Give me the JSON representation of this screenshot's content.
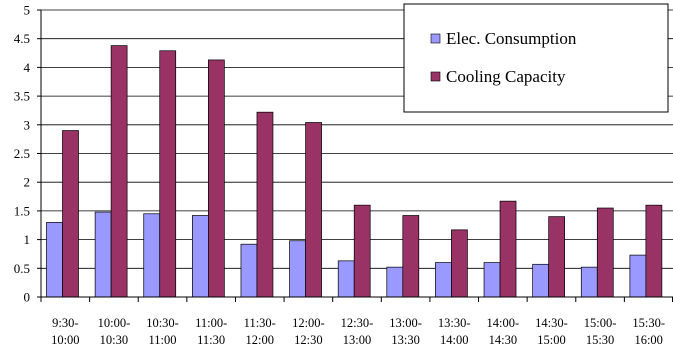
{
  "chart_data": {
    "type": "bar",
    "categories": [
      [
        "9:30-",
        "10:00"
      ],
      [
        "10:00-",
        "10:30"
      ],
      [
        "10:30-",
        "11:00"
      ],
      [
        "11:00-",
        "11:30"
      ],
      [
        "11:30-",
        "12:00"
      ],
      [
        "12:00-",
        "12:30"
      ],
      [
        "12:30-",
        "13:00"
      ],
      [
        "13:00-",
        "13:30"
      ],
      [
        "13:30-",
        "14:00"
      ],
      [
        "14:00-",
        "14:30"
      ],
      [
        "14:30-",
        "15:00"
      ],
      [
        "15:00-",
        "15:30"
      ],
      [
        "15:30-",
        "16:00"
      ]
    ],
    "series": [
      {
        "name": "Elec. Consumption",
        "color": "#9999ff",
        "values": [
          1.3,
          1.48,
          1.45,
          1.42,
          0.92,
          0.98,
          0.63,
          0.52,
          0.6,
          0.6,
          0.57,
          0.52,
          0.73
        ]
      },
      {
        "name": "Cooling Capacity",
        "color": "#993366",
        "values": [
          2.9,
          4.38,
          4.29,
          4.13,
          3.22,
          3.04,
          1.6,
          1.42,
          1.17,
          1.67,
          1.4,
          1.55,
          1.6
        ]
      }
    ],
    "ylim": [
      0,
      5
    ],
    "yticks": [
      "0",
      "0.5",
      "1",
      "1.5",
      "2",
      "2.5",
      "3",
      "3.5",
      "4",
      "4.5",
      "5"
    ],
    "grid": true,
    "legend": "top-right",
    "title": "",
    "xlabel": "",
    "ylabel": ""
  }
}
